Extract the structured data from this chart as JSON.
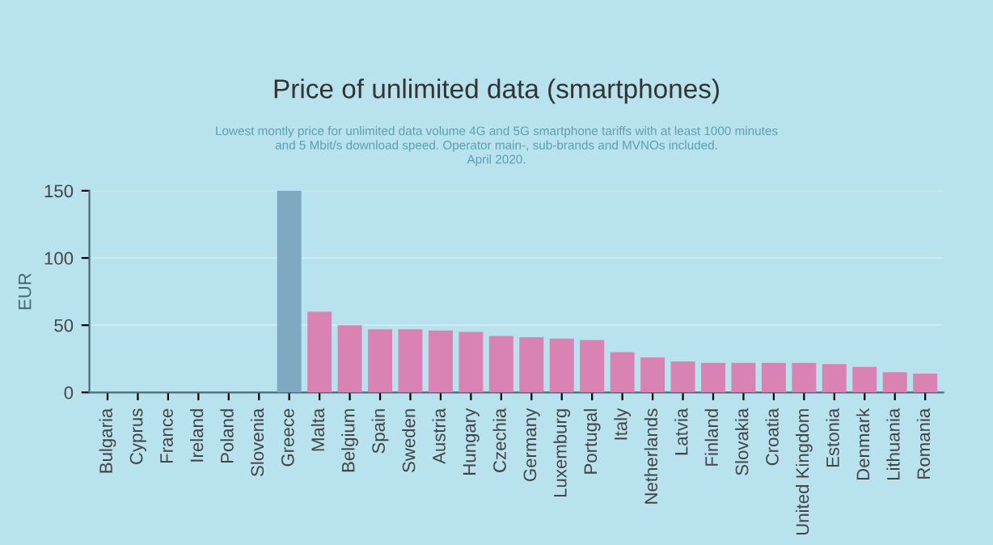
{
  "chart_data": {
    "type": "bar",
    "title": "Price of unlimited data (smartphones)",
    "subtitle": "Lowest montly price for unlimited data volume 4G and 5G smartphone tariffs with at least 1000 minutes\nand 5 Mbit/s download speed. Operator main-, sub-brands and MVNOs included.\nApril 2020.",
    "ylabel": "EUR",
    "categories": [
      "Bulgaria",
      "Cyprus",
      "France",
      "Ireland",
      "Poland",
      "Slovenia",
      "Greece",
      "Malta",
      "Belgium",
      "Spain",
      "Sweden",
      "Austria",
      "Hungary",
      "Czechia",
      "Germany",
      "Luxemburg",
      "Portugal",
      "Italy",
      "Netherlands",
      "Latvia",
      "Finland",
      "Slovakia",
      "Croatia",
      "United Kingdom",
      "Estonia",
      "Denmark",
      "Lithuania",
      "Romania"
    ],
    "values": [
      null,
      null,
      null,
      null,
      null,
      null,
      150,
      60,
      50,
      47,
      47,
      46,
      45,
      42,
      41,
      40,
      39,
      30,
      26,
      23,
      22,
      22,
      22,
      22,
      21,
      19,
      15,
      14
    ],
    "colors": [
      "#d883b4",
      "#d883b4",
      "#d883b4",
      "#d883b4",
      "#d883b4",
      "#d883b4",
      "#7fa9c0",
      "#d883b4",
      "#d883b4",
      "#d883b4",
      "#d883b4",
      "#d883b4",
      "#d883b4",
      "#d883b4",
      "#d883b4",
      "#d883b4",
      "#d883b4",
      "#d883b4",
      "#d883b4",
      "#d883b4",
      "#d883b4",
      "#d883b4",
      "#d883b4",
      "#d883b4",
      "#d883b4",
      "#d883b4",
      "#d883b4",
      "#d883b4"
    ],
    "ylim": [
      0,
      150
    ],
    "yticks": [
      0,
      50,
      100,
      150
    ],
    "grid": "y"
  }
}
